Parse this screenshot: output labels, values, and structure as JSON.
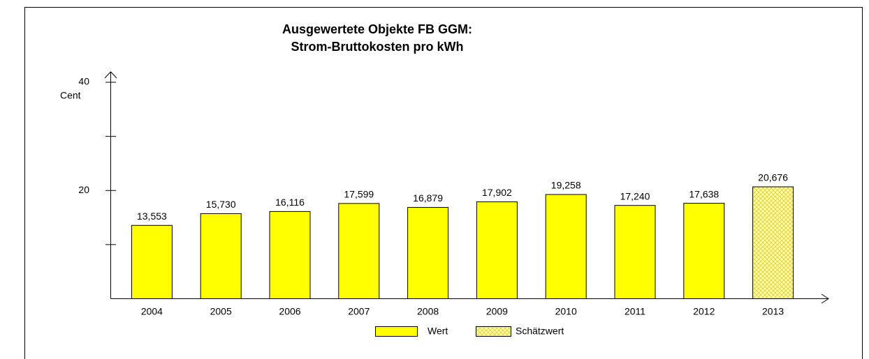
{
  "chart_data": {
    "type": "bar",
    "title": "Ausgewertete Objekte FB GGM:",
    "subtitle": "Strom-Bruttokosten pro kWh",
    "y_label": "Cent",
    "categories": [
      "2004",
      "2005",
      "2006",
      "2007",
      "2008",
      "2009",
      "2010",
      "2011",
      "2012",
      "2013"
    ],
    "series": [
      {
        "name": "Wert",
        "color": "#ffff00",
        "pattern": "solid",
        "values": [
          13.553,
          15.73,
          16.116,
          17.599,
          16.879,
          17.902,
          19.258,
          17.24,
          17.638,
          null
        ],
        "value_labels": [
          "13,553",
          "15,730",
          "16,116",
          "17,599",
          "16,879",
          "17,902",
          "19,258",
          "17,240",
          "17,638",
          null
        ]
      },
      {
        "name": "Schätzwert",
        "color": "#ffff00",
        "pattern": "crosshatch",
        "values": [
          null,
          null,
          null,
          null,
          null,
          null,
          null,
          null,
          null,
          20.676
        ],
        "value_labels": [
          null,
          null,
          null,
          null,
          null,
          null,
          null,
          null,
          null,
          "20,676"
        ]
      }
    ],
    "ylim": [
      0,
      40
    ],
    "yticks": [
      20,
      40
    ],
    "minor_yticks": [
      10,
      30
    ],
    "grid": false
  }
}
